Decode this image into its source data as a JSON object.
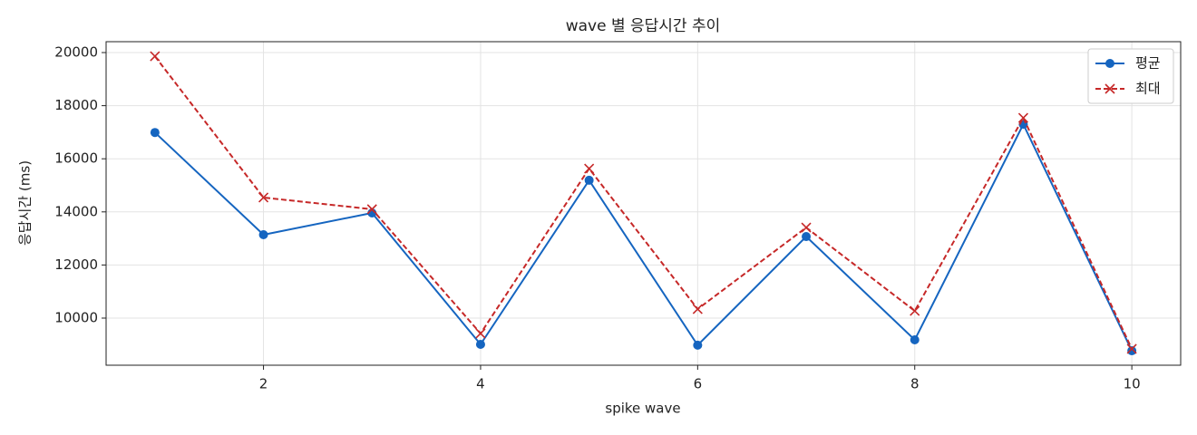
{
  "chart_data": {
    "type": "line",
    "title": "wave 별 응답시간 추이",
    "x_label": "spike wave",
    "y_label": "응답시간 (ms)",
    "x": [
      1,
      2,
      3,
      4,
      5,
      6,
      7,
      8,
      9,
      10
    ],
    "series": [
      {
        "name": "평균",
        "color": "#1565c0",
        "marker": "o",
        "linestyle": "solid",
        "values": [
          16990,
          13140,
          13960,
          9010,
          15190,
          8980,
          13070,
          9180,
          17300,
          8770
        ]
      },
      {
        "name": "최대",
        "color": "#c62828",
        "marker": "x",
        "linestyle": "dashed",
        "values": [
          19860,
          14540,
          14100,
          9420,
          15630,
          10340,
          13410,
          10270,
          17540,
          8840
        ]
      }
    ],
    "xlim": [
      0.55,
      10.45
    ],
    "xticks": [
      2,
      4,
      6,
      8,
      10
    ],
    "ylim": [
      8225,
      20410
    ],
    "yticks": [
      10000,
      12000,
      14000,
      16000,
      18000,
      20000
    ],
    "grid": true,
    "legend": "upper right"
  }
}
